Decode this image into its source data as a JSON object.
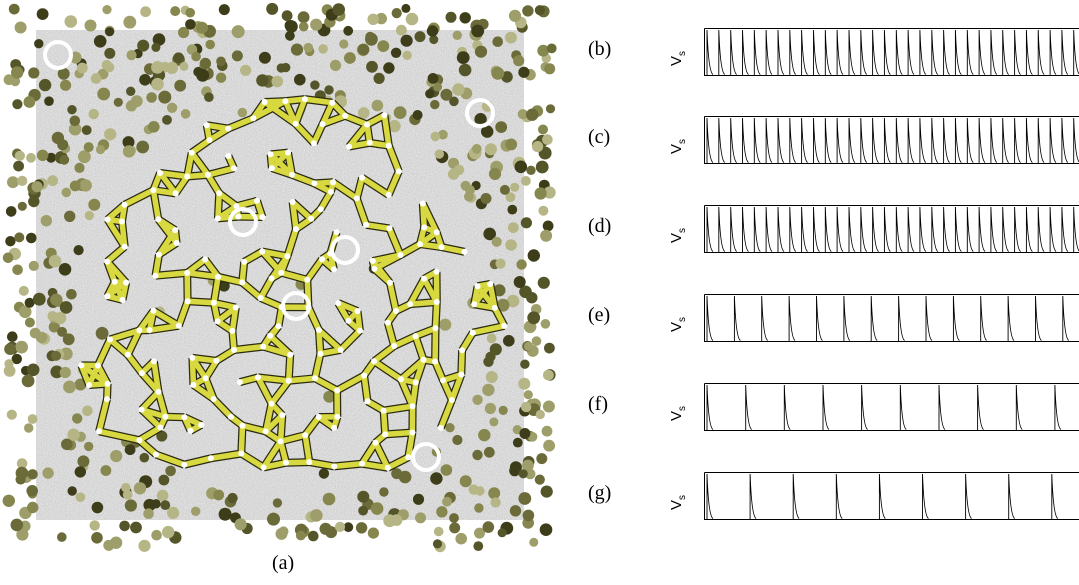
{
  "figure": {
    "panel_a": {
      "label": "(a)",
      "colors": {
        "square": "#c8c8c8",
        "network": "#d8d840",
        "network_edge": "#2a2a10",
        "junction": "#ffffff",
        "dots": [
          "#3d3d1a",
          "#55552a",
          "#6b6b3a",
          "#86864f",
          "#9e9e6a",
          "#b5b586"
        ],
        "ring": "#ffffff"
      }
    },
    "trace_ylabel": "V",
    "trace_ylabel_sub": "s",
    "traces": [
      {
        "label": "(b)",
        "spikes": 32
      },
      {
        "label": "(c)",
        "spikes": 32
      },
      {
        "label": "(d)",
        "spikes": 32
      },
      {
        "label": "(e)",
        "spikes": 14
      },
      {
        "label": "(f)",
        "spikes": 10
      },
      {
        "label": "(g)",
        "spikes": 9
      }
    ]
  }
}
